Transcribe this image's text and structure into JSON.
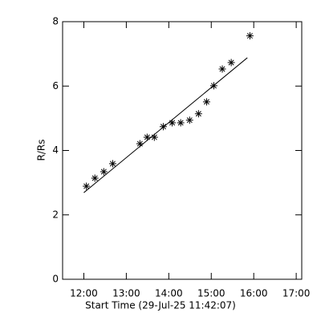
{
  "chart_data": {
    "type": "scatter",
    "xlabel": "Start Time (29-Jul-25 11:42:07)",
    "ylabel": "R/Rs",
    "xlim": [
      11.5,
      17.13
    ],
    "ylim": [
      0,
      8
    ],
    "xticks": [
      {
        "value": 12,
        "label": "12:00"
      },
      {
        "value": 13,
        "label": "13:00"
      },
      {
        "value": 14,
        "label": "14:00"
      },
      {
        "value": 15,
        "label": "15:00"
      },
      {
        "value": 16,
        "label": "16:00"
      },
      {
        "value": 17,
        "label": "17:00"
      }
    ],
    "yticks": [
      0,
      2,
      4,
      6,
      8
    ],
    "color": "#000000",
    "x": [
      12.06,
      12.26,
      12.47,
      12.68,
      13.32,
      13.49,
      13.66,
      13.87,
      14.08,
      14.28,
      14.49,
      14.7,
      14.89,
      15.06,
      15.26,
      15.47,
      15.91
    ],
    "values": [
      2.89,
      3.14,
      3.34,
      3.59,
      4.21,
      4.41,
      4.41,
      4.74,
      4.86,
      4.86,
      4.94,
      5.14,
      5.51,
      6.01,
      6.53,
      6.73,
      7.56
    ],
    "fit": {
      "x": [
        12.0,
        15.85
      ],
      "values": [
        2.69,
        6.88
      ]
    }
  }
}
